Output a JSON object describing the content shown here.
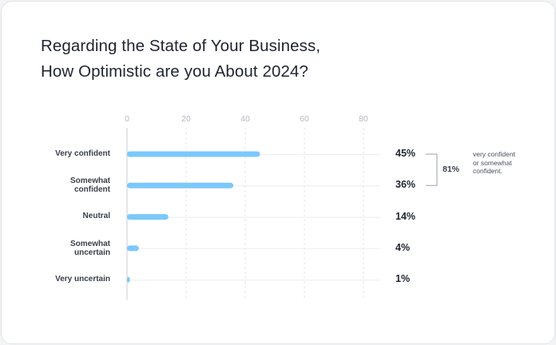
{
  "chart_data": {
    "type": "bar",
    "orientation": "horizontal",
    "title": [
      "Regarding the State of Your Business,",
      "How Optimistic are you About 2024?"
    ],
    "categories": [
      "Very confident",
      "Somewhat confident",
      "Neutral",
      "Somewhat uncertain",
      "Very uncertain"
    ],
    "values": [
      45,
      36,
      14,
      4,
      1
    ],
    "value_labels": [
      "45%",
      "36%",
      "14%",
      "4%",
      "1%"
    ],
    "color": "#7cc8fb",
    "xlim": [
      0,
      80
    ],
    "xticks": [
      0,
      20,
      40,
      60,
      80
    ],
    "grid": true,
    "annotation": {
      "value": 81,
      "label": "81%",
      "text": "very confident or somewhat confident.",
      "spans": [
        0,
        1
      ]
    }
  }
}
